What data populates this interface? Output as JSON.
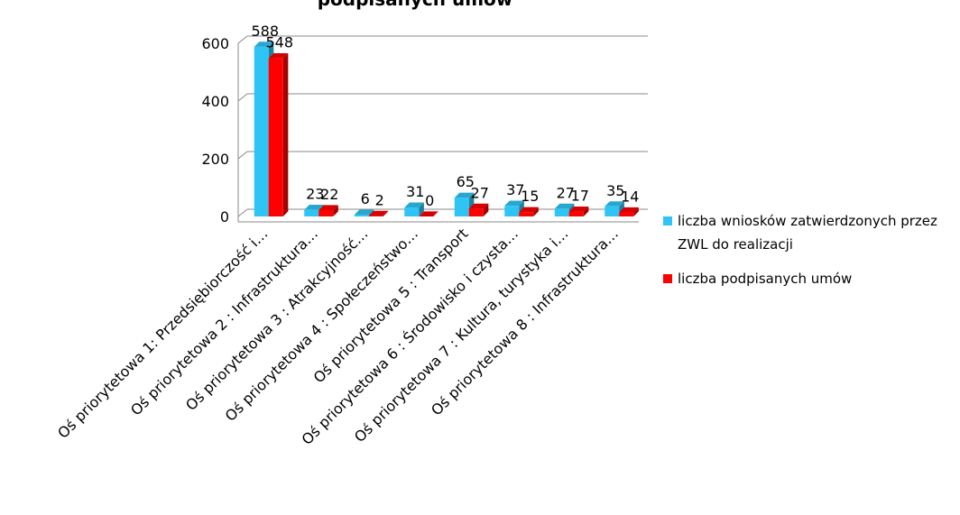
{
  "chart_data": {
    "type": "bar3d",
    "title": "podpisanych umów",
    "categories": [
      "Oś priorytetowa 1: Przedsiębiorczość i…",
      "Oś priorytetowa 2 : Infrastruktura…",
      "Oś priorytetowa 3 : Atrakcyjność…",
      "Oś priorytetowa 4 : Społeczeństwo…",
      "Oś priorytetowa 5 : Transport",
      "Oś priorytetowa 6 : Środowisko i czysta…",
      "Oś priorytetowa 7 : Kultura, turystyka i…",
      "Oś priorytetowa 8 : Infrastruktura…"
    ],
    "series": [
      {
        "name": "liczba wniosków zatwierdzonych przez ZWL do realizacji",
        "color": "#2ec4f5",
        "values": [
          588,
          23,
          6,
          31,
          65,
          37,
          27,
          35
        ]
      },
      {
        "name": "liczba podpisanych umów",
        "color": "#ff0000",
        "values": [
          548,
          22,
          2,
          0,
          27,
          15,
          17,
          14
        ]
      }
    ],
    "ylim": [
      0,
      600
    ],
    "yticks": [
      0,
      200,
      400,
      600
    ],
    "grid": true,
    "legend": "right"
  }
}
